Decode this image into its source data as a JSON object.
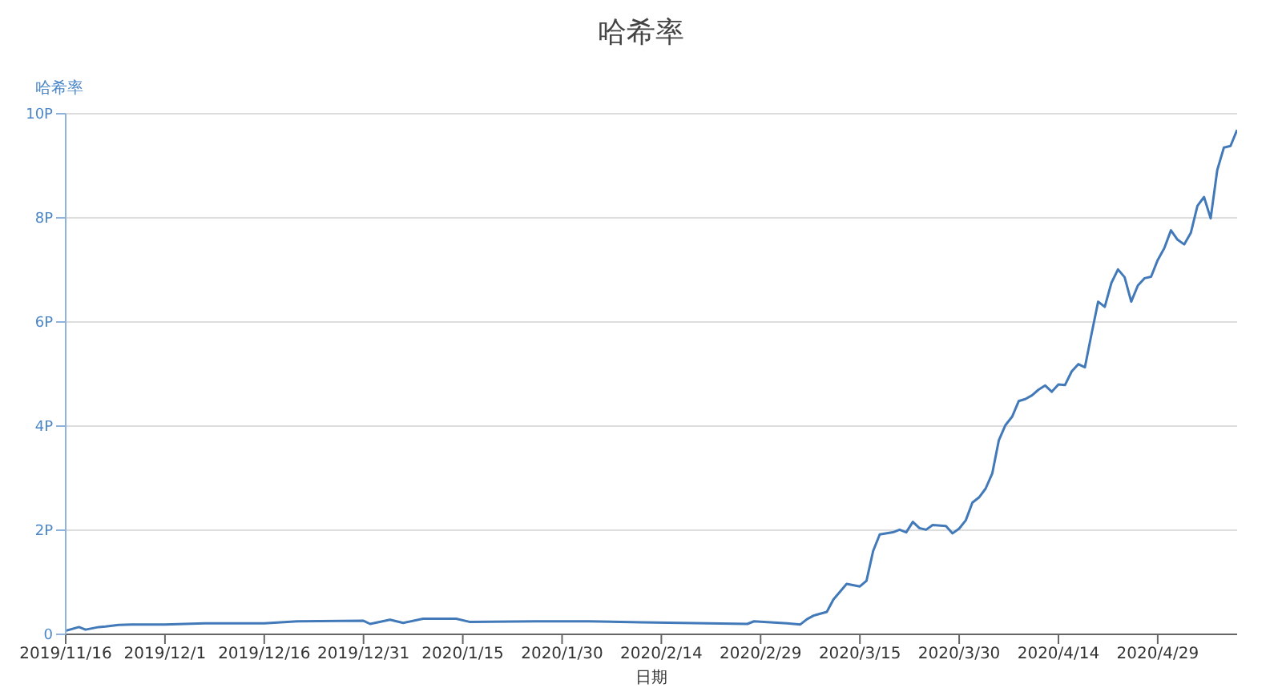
{
  "chart_data": {
    "type": "line",
    "title": "哈希率",
    "xlabel": "日期",
    "ylabel": "哈希率",
    "x": [
      "2019-11-16",
      "2019-11-18",
      "2019-11-19",
      "2019-11-21",
      "2019-11-22",
      "2019-11-24",
      "2019-11-26",
      "2019-12-01",
      "2019-12-07",
      "2019-12-16",
      "2019-12-21",
      "2019-12-31",
      "2020-01-01",
      "2020-01-04",
      "2020-01-06",
      "2020-01-09",
      "2020-01-14",
      "2020-01-16",
      "2020-01-26",
      "2020-02-03",
      "2020-02-11",
      "2020-02-27",
      "2020-02-28",
      "2020-03-04",
      "2020-03-06",
      "2020-03-07",
      "2020-03-08",
      "2020-03-10",
      "2020-03-11",
      "2020-03-13",
      "2020-03-15",
      "2020-03-16",
      "2020-03-17",
      "2020-03-18",
      "2020-03-20",
      "2020-03-21",
      "2020-03-22",
      "2020-03-23",
      "2020-03-24",
      "2020-03-25",
      "2020-03-26",
      "2020-03-28",
      "2020-03-29",
      "2020-03-30",
      "2020-03-31",
      "2020-04-01",
      "2020-04-02",
      "2020-04-03",
      "2020-04-04",
      "2020-04-05",
      "2020-04-06",
      "2020-04-07",
      "2020-04-08",
      "2020-04-09",
      "2020-04-10",
      "2020-04-11",
      "2020-04-12",
      "2020-04-13",
      "2020-04-14",
      "2020-04-15",
      "2020-04-16",
      "2020-04-17",
      "2020-04-18",
      "2020-04-19",
      "2020-04-20",
      "2020-04-21",
      "2020-04-22",
      "2020-04-23",
      "2020-04-24",
      "2020-04-25",
      "2020-04-26",
      "2020-04-27",
      "2020-04-28",
      "2020-04-29",
      "2020-04-30",
      "2020-05-01",
      "2020-05-02",
      "2020-05-03",
      "2020-05-04",
      "2020-05-05",
      "2020-05-06",
      "2020-05-07",
      "2020-05-08",
      "2020-05-09",
      "2020-05-10",
      "2020-05-11"
    ],
    "series": [
      {
        "color": "#4279b8",
        "values": [
          0.07,
          0.14,
          0.09,
          0.14,
          0.15,
          0.18,
          0.19,
          0.19,
          0.21,
          0.21,
          0.25,
          0.26,
          0.2,
          0.28,
          0.22,
          0.3,
          0.3,
          0.24,
          0.25,
          0.25,
          0.23,
          0.2,
          0.25,
          0.21,
          0.19,
          0.29,
          0.36,
          0.43,
          0.67,
          0.97,
          0.92,
          1.03,
          1.6,
          1.92,
          1.96,
          2.01,
          1.96,
          2.16,
          2.04,
          2.01,
          2.1,
          2.08,
          1.94,
          2.03,
          2.19,
          2.53,
          2.63,
          2.8,
          3.09,
          3.73,
          4.02,
          4.18,
          4.48,
          4.52,
          4.59,
          4.7,
          4.78,
          4.66,
          4.8,
          4.79,
          5.05,
          5.19,
          5.13,
          5.77,
          6.39,
          6.29,
          6.75,
          7.01,
          6.86,
          6.39,
          6.7,
          6.84,
          6.87,
          7.19,
          7.42,
          7.76,
          7.58,
          7.49,
          7.71,
          8.23,
          8.4,
          7.99,
          8.92,
          9.35,
          9.38,
          9.69
        ]
      }
    ],
    "xlim": [
      "2019-11-16",
      "2020-05-11"
    ],
    "xticks": [
      {
        "value": "2019-11-16",
        "label": "2019/11/16"
      },
      {
        "value": "2019-12-01",
        "label": "2019/12/1"
      },
      {
        "value": "2019-12-16",
        "label": "2019/12/16"
      },
      {
        "value": "2019-12-31",
        "label": "2019/12/31"
      },
      {
        "value": "2020-01-15",
        "label": "2020/1/15"
      },
      {
        "value": "2020-01-30",
        "label": "2020/1/30"
      },
      {
        "value": "2020-02-14",
        "label": "2020/2/14"
      },
      {
        "value": "2020-02-29",
        "label": "2020/2/29"
      },
      {
        "value": "2020-03-15",
        "label": "2020/3/15"
      },
      {
        "value": "2020-03-30",
        "label": "2020/3/30"
      },
      {
        "value": "2020-04-14",
        "label": "2020/4/14"
      },
      {
        "value": "2020-04-29",
        "label": "2020/4/29"
      }
    ],
    "ylim": [
      0,
      10
    ],
    "yticks": [
      0,
      {
        "value": 2,
        "label": "2P"
      },
      {
        "value": 4,
        "label": "4P"
      },
      {
        "value": 6,
        "label": "6P"
      },
      {
        "value": 8,
        "label": "8P"
      },
      {
        "value": 10,
        "label": "10P"
      }
    ],
    "grid": "y",
    "marker": "none",
    "line_style": "solid"
  }
}
